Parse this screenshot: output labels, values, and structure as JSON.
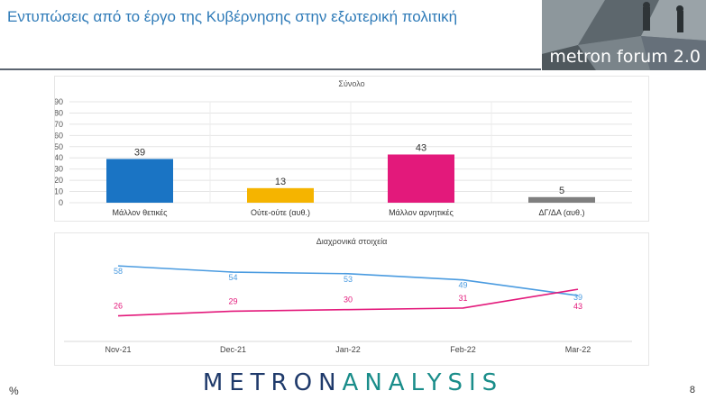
{
  "header": {
    "title": "Εντυπώσεις από το έργο της Κυβέρνησης στην εξωτερική πολιτική",
    "logo_text": "metron forum 2.0"
  },
  "footer": {
    "brand_part1": "METRON",
    "brand_part2": "ANALYSIS",
    "page_number": "8",
    "percent_symbol": "%"
  },
  "chart_data": [
    {
      "type": "bar",
      "title": "Σύνολο",
      "categories": [
        "Μάλλον θετικές",
        "Ούτε-ούτε (αυθ.)",
        "Μάλλον αρνητικές",
        "ΔΓ/ΔΑ (αυθ.)"
      ],
      "values": [
        39,
        13,
        43,
        5
      ],
      "colors": [
        "#1a74c4",
        "#f5b400",
        "#e3197b",
        "#7f7f7f"
      ],
      "yticks": [
        0,
        10,
        20,
        30,
        40,
        50,
        60,
        70,
        80,
        90
      ],
      "ylim": [
        0,
        90
      ],
      "grid": true
    },
    {
      "type": "line",
      "title": "Διαχρονικά στοιχεία",
      "x": [
        "Nov-21",
        "Dec-21",
        "Jan-22",
        "Feb-22",
        "Mar-22"
      ],
      "series": [
        {
          "values": [
            58,
            54,
            53,
            49,
            39
          ],
          "color": "#4a9be0"
        },
        {
          "values": [
            26,
            29,
            30,
            31,
            43
          ],
          "color": "#e3197b"
        }
      ],
      "grid": false
    }
  ]
}
